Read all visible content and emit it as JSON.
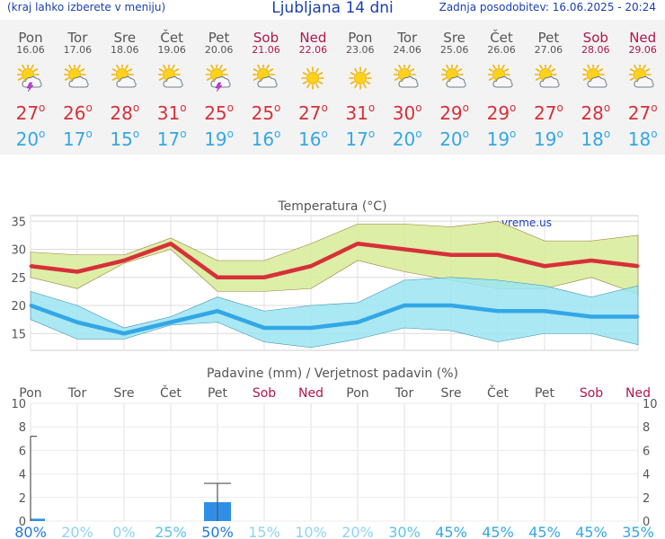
{
  "header": {
    "left_note": "(kraj lahko izberete v meniju)",
    "title": "Ljubljana 14 dni",
    "updated": "Zadnja posodobitev: 16.06.2025 - 20:24"
  },
  "forecast": [
    {
      "day": "Pon",
      "date": "16.06",
      "weekend": false,
      "icon": "sun-cloud-thunder-icon",
      "tmax": "27",
      "tmin": "20"
    },
    {
      "day": "Tor",
      "date": "17.06",
      "weekend": false,
      "icon": "sun-cloud-icon",
      "tmax": "26",
      "tmin": "17"
    },
    {
      "day": "Sre",
      "date": "18.06",
      "weekend": false,
      "icon": "sun-cloud-icon",
      "tmax": "28",
      "tmin": "15"
    },
    {
      "day": "Čet",
      "date": "19.06",
      "weekend": false,
      "icon": "sun-cloud-icon",
      "tmax": "31",
      "tmin": "17"
    },
    {
      "day": "Pet",
      "date": "20.06",
      "weekend": false,
      "icon": "sun-cloud-thunder-icon",
      "tmax": "25",
      "tmin": "19"
    },
    {
      "day": "Sob",
      "date": "21.06",
      "weekend": true,
      "icon": "sun-cloud-icon",
      "tmax": "25",
      "tmin": "16"
    },
    {
      "day": "Ned",
      "date": "22.06",
      "weekend": true,
      "icon": "sun-icon",
      "tmax": "27",
      "tmin": "16"
    },
    {
      "day": "Pon",
      "date": "23.06",
      "weekend": false,
      "icon": "sun-icon",
      "tmax": "31",
      "tmin": "17"
    },
    {
      "day": "Tor",
      "date": "24.06",
      "weekend": false,
      "icon": "sun-cloud-icon",
      "tmax": "30",
      "tmin": "20"
    },
    {
      "day": "Sre",
      "date": "25.06",
      "weekend": false,
      "icon": "sun-cloud-icon",
      "tmax": "29",
      "tmin": "20"
    },
    {
      "day": "Čet",
      "date": "26.06",
      "weekend": false,
      "icon": "sun-cloud-icon",
      "tmax": "29",
      "tmin": "19"
    },
    {
      "day": "Pet",
      "date": "27.06",
      "weekend": false,
      "icon": "sun-cloud-icon",
      "tmax": "27",
      "tmin": "19"
    },
    {
      "day": "Sob",
      "date": "28.06",
      "weekend": true,
      "icon": "sun-cloud-icon",
      "tmax": "28",
      "tmin": "18"
    },
    {
      "day": "Ned",
      "date": "29.06",
      "weekend": true,
      "icon": "sun-cloud-icon",
      "tmax": "27",
      "tmin": "18"
    }
  ],
  "colors": {
    "tmax": "#d6303a",
    "tmin": "#33a7e6",
    "weekend": "#b0164a",
    "tmax_band": "#d9ec9c",
    "tmin_band": "#9be4f2",
    "precip_bar": "#2f8fe8",
    "header_text": "#1a3fb0"
  },
  "chart_data": [
    {
      "type": "line",
      "title": "Temperatura (°C)",
      "watermark": "vreme.us",
      "x": [
        "Pon",
        "Tor",
        "Sre",
        "Čet",
        "Pet",
        "Sob",
        "Ned",
        "Pon",
        "Tor",
        "Sre",
        "Čet",
        "Pet",
        "Sob",
        "Ned"
      ],
      "ylim": [
        12,
        36
      ],
      "yticks": [
        15,
        20,
        25,
        30,
        35
      ],
      "grid": true,
      "series": [
        {
          "values": [
            27,
            26,
            28,
            31,
            25,
            25,
            27,
            31,
            30,
            29,
            29,
            27,
            28,
            27
          ],
          "band_upper": [
            29.5,
            29,
            29,
            32,
            28,
            28,
            31,
            34.5,
            34.5,
            34,
            35,
            31.5,
            31.5,
            32.5
          ],
          "band_lower": [
            25,
            23,
            27.5,
            30,
            22.5,
            22.5,
            23,
            28,
            26,
            24.5,
            23,
            23,
            25,
            22
          ]
        },
        {
          "values": [
            20,
            17,
            15,
            17,
            19,
            16,
            16,
            17,
            20,
            20,
            19,
            19,
            18,
            18
          ],
          "band_upper": [
            22.5,
            20,
            16,
            18,
            21.5,
            19,
            20,
            20.5,
            24.5,
            25,
            24.5,
            23.5,
            21.5,
            23.5
          ],
          "band_lower": [
            17.5,
            14,
            14,
            16.5,
            17,
            13.5,
            12.5,
            14,
            16,
            15.5,
            13.5,
            15,
            15,
            13
          ]
        }
      ]
    },
    {
      "type": "bar",
      "title": "Padavine (mm) / Verjetnost padavin (%)",
      "categories": [
        "Pon",
        "Tor",
        "Sre",
        "Čet",
        "Pet",
        "Sob",
        "Ned",
        "Pon",
        "Tor",
        "Sre",
        "Čet",
        "Pet",
        "Sob",
        "Ned"
      ],
      "values": [
        0.2,
        0,
        0,
        0,
        1.6,
        0,
        0,
        0,
        0,
        0,
        0,
        0,
        0,
        0
      ],
      "range_max": [
        7.2,
        null,
        null,
        null,
        3.2,
        null,
        null,
        null,
        null,
        null,
        null,
        null,
        null,
        null
      ],
      "probability": [
        "80%",
        "20%",
        "0%",
        "25%",
        "50%",
        "15%",
        "10%",
        "20%",
        "30%",
        "45%",
        "45%",
        "45%",
        "45%",
        "35%"
      ],
      "probability_colors": [
        "#1f78e0",
        "#8fd3f5",
        "#8fd3f5",
        "#5cc3f0",
        "#1f78e0",
        "#8fd3f5",
        "#8fd3f5",
        "#8fd3f5",
        "#5cc3f0",
        "#33a7e6",
        "#33a7e6",
        "#33a7e6",
        "#33a7e6",
        "#33a7e6"
      ],
      "ylim": [
        0,
        10
      ],
      "yticks": [
        0,
        2,
        4,
        6,
        8,
        10
      ],
      "grid": true
    }
  ]
}
